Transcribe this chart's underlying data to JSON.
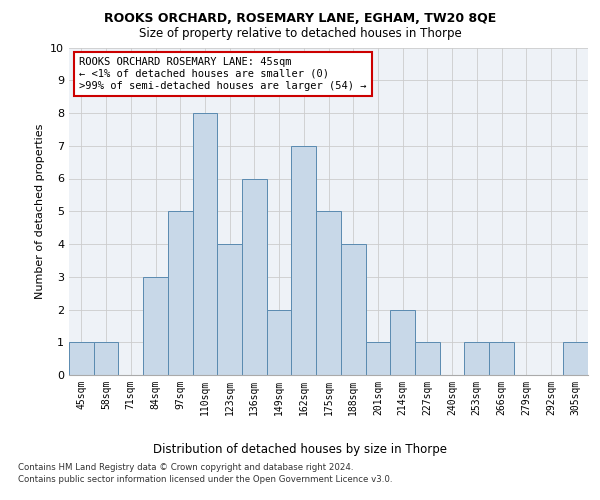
{
  "title1": "ROOKS ORCHARD, ROSEMARY LANE, EGHAM, TW20 8QE",
  "title2": "Size of property relative to detached houses in Thorpe",
  "xlabel": "Distribution of detached houses by size in Thorpe",
  "ylabel": "Number of detached properties",
  "categories": [
    "45sqm",
    "58sqm",
    "71sqm",
    "84sqm",
    "97sqm",
    "110sqm",
    "123sqm",
    "136sqm",
    "149sqm",
    "162sqm",
    "175sqm",
    "188sqm",
    "201sqm",
    "214sqm",
    "227sqm",
    "240sqm",
    "253sqm",
    "266sqm",
    "279sqm",
    "292sqm",
    "305sqm"
  ],
  "values": [
    1,
    1,
    0,
    3,
    5,
    8,
    4,
    6,
    2,
    7,
    5,
    4,
    1,
    2,
    1,
    0,
    1,
    1,
    0,
    0,
    1
  ],
  "bar_color": "#c8d8e8",
  "bar_edge_color": "#5a8ab0",
  "annotation_text": "ROOKS ORCHARD ROSEMARY LANE: 45sqm\n← <1% of detached houses are smaller (0)\n>99% of semi-detached houses are larger (54) →",
  "annotation_box_color": "#ffffff",
  "annotation_box_edge": "#cc0000",
  "footer1": "Contains HM Land Registry data © Crown copyright and database right 2024.",
  "footer2": "Contains public sector information licensed under the Open Government Licence v3.0.",
  "ylim": [
    0,
    10
  ],
  "yticks": [
    0,
    1,
    2,
    3,
    4,
    5,
    6,
    7,
    8,
    9,
    10
  ],
  "grid_color": "#cccccc",
  "bg_color": "#eef2f7"
}
